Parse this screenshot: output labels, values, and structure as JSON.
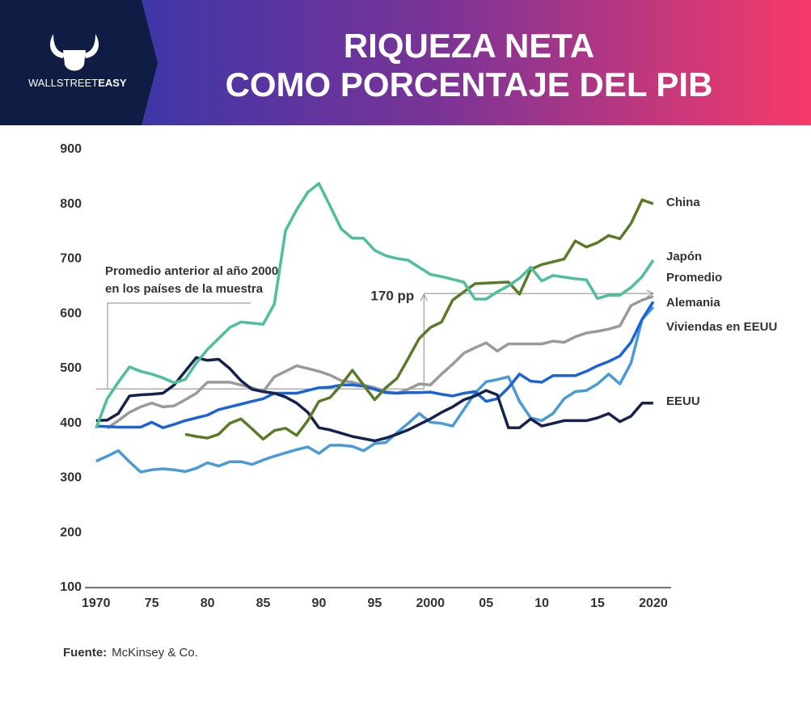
{
  "header": {
    "brand_light": "WALLSTREET",
    "brand_bold": "EASY",
    "title_lines": [
      "RIQUEZA NETA",
      "COMO PORCENTAJE DEL PIB"
    ]
  },
  "chart_data": {
    "type": "line",
    "x": [
      1970,
      1971,
      1972,
      1973,
      1974,
      1975,
      1976,
      1977,
      1978,
      1979,
      1980,
      1981,
      1982,
      1983,
      1984,
      1985,
      1986,
      1987,
      1988,
      1989,
      1990,
      1991,
      1992,
      1993,
      1994,
      1995,
      1996,
      1997,
      1998,
      1999,
      2000,
      2001,
      2002,
      2003,
      2004,
      2005,
      2006,
      2007,
      2008,
      2009,
      2010,
      2011,
      2012,
      2013,
      2014,
      2015,
      2016,
      2017,
      2018,
      2019,
      2020
    ],
    "series": [
      {
        "name": "Promedio",
        "color": "#9a9a9a",
        "values": [
          null,
          391,
          405,
          420,
          430,
          437,
          430,
          432,
          443,
          455,
          475,
          475,
          475,
          470,
          465,
          458,
          485,
          495,
          505,
          500,
          495,
          488,
          478,
          475,
          470,
          465,
          458,
          455,
          462,
          472,
          470,
          490,
          508,
          528,
          538,
          547,
          532,
          545,
          545,
          545,
          545,
          550,
          548,
          558,
          565,
          568,
          572,
          578,
          615,
          625,
          632
        ]
      },
      {
        "name": "Viviendas en EEUU",
        "color": "#4a9ad8",
        "values": [
          331,
          340,
          350,
          330,
          311,
          315,
          317,
          315,
          312,
          318,
          328,
          322,
          330,
          330,
          325,
          333,
          340,
          346,
          352,
          357,
          345,
          360,
          360,
          358,
          350,
          363,
          365,
          383,
          400,
          418,
          402,
          400,
          395,
          425,
          455,
          476,
          480,
          485,
          440,
          410,
          405,
          418,
          445,
          458,
          460,
          472,
          490,
          472,
          510,
          590,
          612
        ]
      },
      {
        "name": "Alemania",
        "color": "#1c63d6",
        "values": [
          395,
          394,
          393,
          393,
          393,
          402,
          392,
          398,
          405,
          410,
          415,
          425,
          430,
          435,
          440,
          445,
          455,
          455,
          455,
          460,
          465,
          466,
          470,
          470,
          468,
          462,
          456,
          455,
          456,
          456,
          457,
          453,
          450,
          455,
          458,
          440,
          445,
          465,
          490,
          477,
          475,
          487,
          487,
          487,
          495,
          505,
          513,
          523,
          548,
          590,
          622
        ]
      },
      {
        "name": "EEUU",
        "color": "#15224b",
        "values": [
          405,
          406,
          418,
          450,
          452,
          453,
          455,
          470,
          495,
          520,
          515,
          517,
          500,
          478,
          462,
          458,
          455,
          448,
          437,
          420,
          392,
          388,
          382,
          376,
          372,
          368,
          373,
          380,
          388,
          398,
          408,
          420,
          430,
          443,
          450,
          460,
          452,
          392,
          392,
          408,
          395,
          400,
          405,
          405,
          405,
          410,
          418,
          403,
          413,
          437,
          437
        ]
      },
      {
        "name": "China",
        "color": "#5b7a2b",
        "values": [
          null,
          null,
          null,
          null,
          null,
          null,
          null,
          null,
          380,
          376,
          373,
          380,
          400,
          408,
          390,
          371,
          387,
          391,
          378,
          405,
          440,
          447,
          470,
          497,
          470,
          443,
          465,
          482,
          518,
          555,
          575,
          585,
          625,
          640,
          655,
          656,
          657,
          658,
          636,
          681,
          690,
          695,
          700,
          733,
          722,
          730,
          743,
          737,
          765,
          808,
          801
        ]
      },
      {
        "name": "Japón",
        "color": "#4fbf9b",
        "values": [
          391,
          445,
          475,
          503,
          495,
          490,
          483,
          474,
          480,
          510,
          535,
          555,
          575,
          585,
          583,
          581,
          618,
          752,
          790,
          822,
          838,
          797,
          755,
          738,
          738,
          716,
          706,
          701,
          698,
          685,
          672,
          668,
          663,
          658,
          627,
          627,
          640,
          651,
          665,
          685,
          660,
          670,
          667,
          664,
          662,
          628,
          634,
          634,
          648,
          668,
          698
        ]
      }
    ],
    "xlim": [
      1969,
      2021.6
    ],
    "ylim": [
      100,
      900
    ],
    "xticks": [
      1970,
      {
        "value": 1975,
        "label": "75"
      },
      {
        "value": 1980,
        "label": "80"
      },
      {
        "value": 1985,
        "label": "85"
      },
      {
        "value": 1990,
        "label": "90"
      },
      {
        "value": 1995,
        "label": "95"
      },
      2000,
      {
        "value": 2005,
        "label": "05"
      },
      {
        "value": 2010,
        "label": "10"
      },
      {
        "value": 2015,
        "label": "15"
      },
      2020
    ],
    "yticks": [
      100,
      200,
      300,
      400,
      500,
      600,
      700,
      800,
      900
    ],
    "annotation_lines": [
      "Promedio anterior al año 2000",
      "en los países de la muestra"
    ],
    "reference_levels": [
      463,
      637
    ],
    "gap_label": "170 pp",
    "source_label": "Fuente:",
    "source": "McKinsey & Co."
  }
}
